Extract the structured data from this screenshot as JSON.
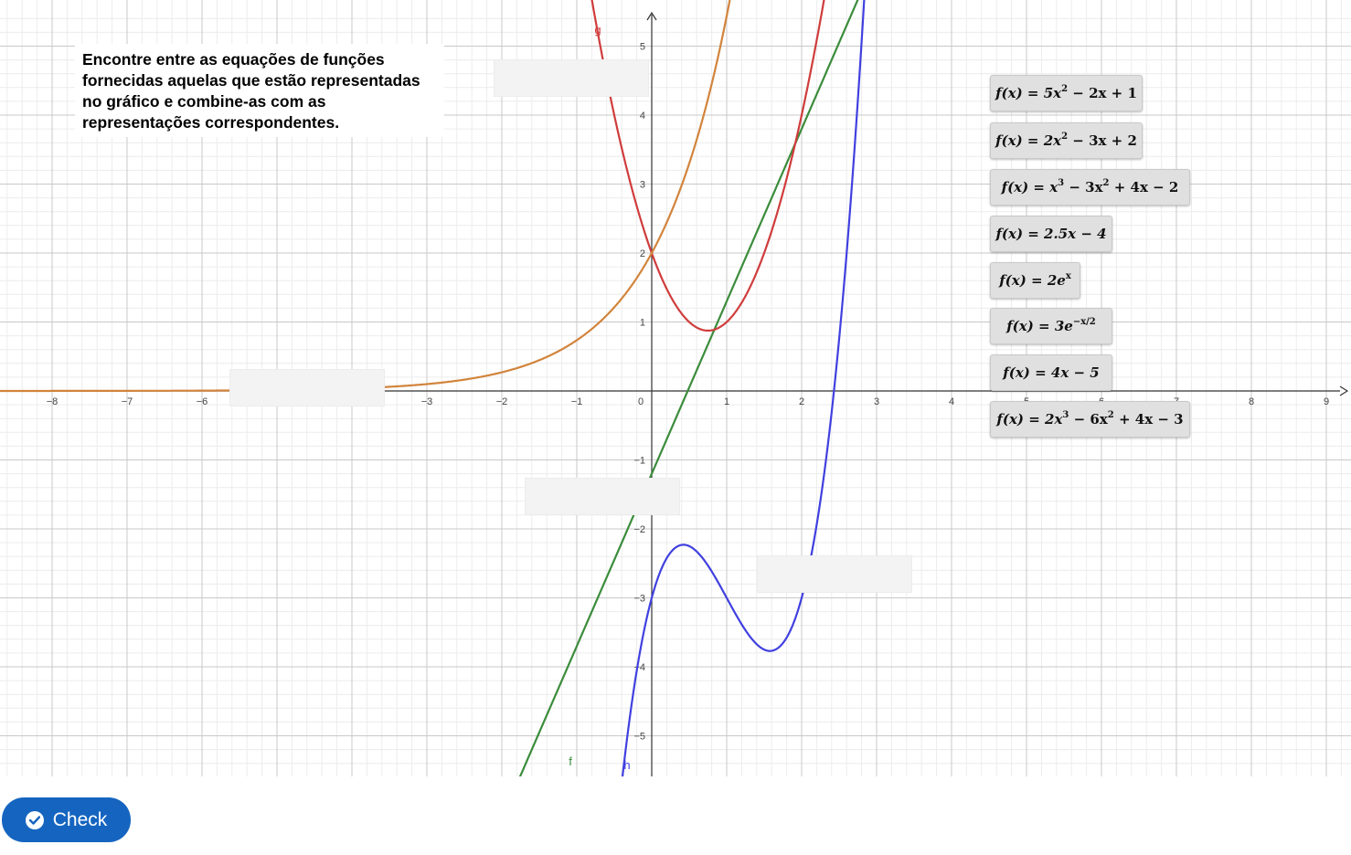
{
  "instructions": "Encontre entre as equações de funções fornecidas aquelas que estão representadas no gráfico e combine-as com as representações correspondentes.",
  "graph": {
    "x_ticks": [
      "−8",
      "−7",
      "−6",
      "−5",
      "−4",
      "−3",
      "−2",
      "−1",
      "0",
      "1",
      "2",
      "3",
      "4",
      "5",
      "6",
      "7",
      "8",
      "9"
    ],
    "y_ticks": [
      "5",
      "4",
      "3",
      "2",
      "1",
      "−1",
      "−2",
      "−3",
      "−4",
      "−5"
    ],
    "x_range": [
      -8.7,
      9.2
    ],
    "y_range": [
      -5.6,
      5.5
    ],
    "curves": [
      {
        "name": "f",
        "label": "f",
        "color": "#3c8c3c",
        "expression": "2.5x - 1.2"
      },
      {
        "name": "g",
        "label": "g",
        "color": "#d03c3c",
        "expression": "2x^2 - 3x + 2"
      },
      {
        "name": "h",
        "label": "h",
        "color": "#4040e0",
        "expression": "2x^3 - 6x^2 + 4x - 3"
      },
      {
        "name": "exp",
        "label": "",
        "color": "#d2843c",
        "expression": "2e^x"
      }
    ]
  },
  "equations": [
    {
      "id": "eq1",
      "parts": [
        "f(x) = 5x",
        "2",
        " − 2x + 1"
      ]
    },
    {
      "id": "eq2",
      "parts": [
        "f(x) = 2x",
        "2",
        " − 3x + 2"
      ]
    },
    {
      "id": "eq3",
      "parts": [
        "f(x) = x",
        "3",
        " − 3x",
        "2",
        " + 4x − 2"
      ]
    },
    {
      "id": "eq4",
      "parts": [
        "f(x) = 2.5x − 4"
      ]
    },
    {
      "id": "eq5",
      "parts": [
        "f(x) = 2e",
        "x"
      ]
    },
    {
      "id": "eq6",
      "parts": [
        "f(x) = 3e",
        "−x/2"
      ]
    },
    {
      "id": "eq7",
      "parts": [
        "f(x) = 4x − 5"
      ]
    },
    {
      "id": "eq8",
      "parts": [
        "f(x) = 2x",
        "3",
        " − 6x",
        "2",
        " + 4x − 3"
      ]
    }
  ],
  "check_button": {
    "label": "Check",
    "accent": "#1565c0"
  }
}
